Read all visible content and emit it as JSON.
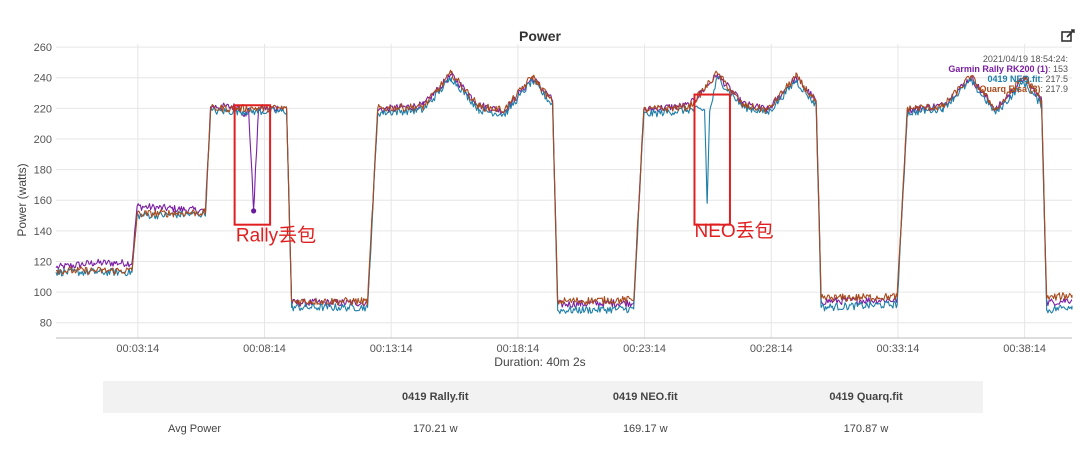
{
  "chart_data": {
    "type": "line",
    "title": "Power",
    "ylabel": "Power (watts)",
    "xlabel": "Duration: 40m 2s",
    "ylim": [
      70,
      262
    ],
    "xlim_min": [
      0,
      40.1
    ],
    "y_ticks": [
      80,
      100,
      120,
      140,
      160,
      180,
      200,
      220,
      240,
      260
    ],
    "x_ticks": [
      "00:03:14",
      "00:08:14",
      "00:13:14",
      "00:18:14",
      "00:23:14",
      "00:28:14",
      "00:33:14",
      "00:38:14"
    ],
    "x_tick_minutes": [
      3.23,
      8.23,
      13.23,
      18.23,
      23.23,
      28.23,
      33.23,
      38.23
    ],
    "grid": true,
    "series": [
      {
        "name": "Garmin Rally RK200 (1)",
        "color": "#7b1fa2",
        "points": [
          [
            0,
            116
          ],
          [
            1.5,
            119
          ],
          [
            3.0,
            119
          ],
          [
            3.2,
            156
          ],
          [
            5.9,
            153
          ],
          [
            6.1,
            221
          ],
          [
            7.2,
            221
          ],
          [
            7.5,
            215
          ],
          [
            7.6,
            220
          ],
          [
            7.8,
            154
          ],
          [
            8.0,
            220
          ],
          [
            9.1,
            220
          ],
          [
            9.3,
            93
          ],
          [
            12.3,
            93
          ],
          [
            12.7,
            219
          ],
          [
            14.5,
            222
          ],
          [
            15.6,
            242
          ],
          [
            16.7,
            222
          ],
          [
            17.7,
            218
          ],
          [
            18.8,
            240
          ],
          [
            19.6,
            225
          ],
          [
            19.8,
            92
          ],
          [
            22.8,
            93
          ],
          [
            23.2,
            219
          ],
          [
            25.0,
            222
          ],
          [
            26.1,
            242
          ],
          [
            27.1,
            223
          ],
          [
            28.1,
            219
          ],
          [
            29.2,
            240
          ],
          [
            30.0,
            225
          ],
          [
            30.2,
            94
          ],
          [
            33.2,
            95
          ],
          [
            33.6,
            219
          ],
          [
            35.0,
            222
          ],
          [
            36.1,
            240
          ],
          [
            37.1,
            219
          ],
          [
            38.2,
            240
          ],
          [
            38.9,
            225
          ],
          [
            39.1,
            93
          ],
          [
            40.1,
            95
          ]
        ]
      },
      {
        "name": "0419 NEO.fit",
        "color": "#1f7fa8",
        "points": [
          [
            0,
            113
          ],
          [
            3.0,
            113
          ],
          [
            3.2,
            150
          ],
          [
            5.9,
            151
          ],
          [
            6.1,
            218
          ],
          [
            9.1,
            218
          ],
          [
            9.3,
            90
          ],
          [
            12.3,
            90
          ],
          [
            12.7,
            217
          ],
          [
            14.5,
            219
          ],
          [
            15.6,
            240
          ],
          [
            16.7,
            219
          ],
          [
            17.7,
            216
          ],
          [
            18.8,
            238
          ],
          [
            19.6,
            222
          ],
          [
            19.8,
            88
          ],
          [
            22.8,
            89
          ],
          [
            23.2,
            216
          ],
          [
            25.0,
            219
          ],
          [
            25.6,
            219
          ],
          [
            25.7,
            158
          ],
          [
            25.8,
            218
          ],
          [
            26.1,
            240
          ],
          [
            27.1,
            221
          ],
          [
            28.1,
            217
          ],
          [
            29.2,
            238
          ],
          [
            30.0,
            222
          ],
          [
            30.2,
            90
          ],
          [
            33.2,
            92
          ],
          [
            33.6,
            217
          ],
          [
            35.0,
            220
          ],
          [
            36.1,
            238
          ],
          [
            37.1,
            217
          ],
          [
            38.2,
            237
          ],
          [
            38.9,
            222
          ],
          [
            39.1,
            88
          ],
          [
            40.1,
            91
          ]
        ]
      },
      {
        "name": "Quarq Elsa (3)",
        "color": "#a84a1c",
        "points": [
          [
            0,
            114
          ],
          [
            3.0,
            114
          ],
          [
            3.2,
            151
          ],
          [
            5.9,
            152
          ],
          [
            6.1,
            220
          ],
          [
            9.1,
            220
          ],
          [
            9.3,
            94
          ],
          [
            12.3,
            94
          ],
          [
            12.7,
            220
          ],
          [
            14.5,
            221
          ],
          [
            15.6,
            243
          ],
          [
            16.7,
            221
          ],
          [
            17.7,
            219
          ],
          [
            18.8,
            241
          ],
          [
            19.6,
            224
          ],
          [
            19.8,
            94
          ],
          [
            22.8,
            95
          ],
          [
            23.2,
            219
          ],
          [
            25.0,
            221
          ],
          [
            26.1,
            243
          ],
          [
            27.1,
            222
          ],
          [
            28.1,
            219
          ],
          [
            29.2,
            241
          ],
          [
            30.0,
            224
          ],
          [
            30.2,
            96
          ],
          [
            33.2,
            97
          ],
          [
            33.6,
            220
          ],
          [
            35.0,
            221
          ],
          [
            36.1,
            241
          ],
          [
            37.1,
            219
          ],
          [
            38.2,
            241
          ],
          [
            38.9,
            225
          ],
          [
            39.1,
            96
          ],
          [
            40.1,
            98
          ]
        ]
      }
    ],
    "tooltip": {
      "timestamp": "2021/04/19 18:54:24:",
      "rows": [
        {
          "name": "Garmin Rally RK200 (1)",
          "value": ": 153",
          "color": "#7b1fa2"
        },
        {
          "name": "0419 NEO.fit",
          "value": ": 217.5",
          "color": "#1f7fa8"
        },
        {
          "name": "Quarq Elsa (3)",
          "value": ": 217.9",
          "color": "#a84a1c"
        }
      ]
    },
    "marker": {
      "x": 7.8,
      "y": 153,
      "color": "#6a1b9a"
    },
    "annotations": [
      {
        "label": "Rally丢包",
        "box": {
          "x0": 7.05,
          "x1": 8.45,
          "y0": 144,
          "y1": 222
        },
        "label_x": 7.1,
        "label_y": 133
      },
      {
        "label": "NEO丢包",
        "box": {
          "x0": 25.2,
          "x1": 26.6,
          "y0": 144,
          "y1": 229
        },
        "label_x": 25.2,
        "label_y": 136
      }
    ]
  },
  "stats_table": {
    "columns": [
      "",
      "0419 Rally.fit",
      "0419 NEO.fit",
      "0419 Quarq.fit"
    ],
    "rows": [
      {
        "label": "Avg Power",
        "values": [
          "170.21 w",
          "169.17 w",
          "170.87 w"
        ]
      }
    ]
  },
  "colors": {
    "annotation": "#e02020",
    "grid": "#e6e6e6"
  }
}
